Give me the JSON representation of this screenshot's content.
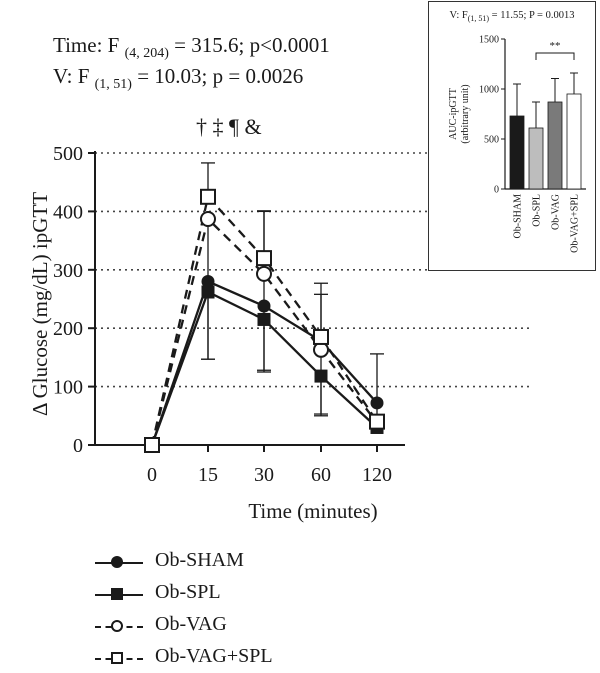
{
  "stats": {
    "time_prefix": "Time: F",
    "time_sub": "(4, 204)",
    "time_suffix": " = 315.6; p<0.0001",
    "v_prefix": "V: F",
    "v_sub": "(1, 51)",
    "v_suffix": " = 10.03; p = 0.0026"
  },
  "significance_marks": "† ‡ ¶ &",
  "chart_data": [
    {
      "type": "line",
      "title": "",
      "xlabel": "Time (minutes)",
      "ylabel": "Δ Glucose (mg/dL) ipGTT",
      "categories": [
        "0",
        "15",
        "30",
        "60",
        "120"
      ],
      "ylim": [
        0,
        500
      ],
      "yticks": [
        "0",
        "100",
        "200",
        "300",
        "400",
        "500"
      ],
      "grid": "dotted horizontal",
      "legend_placement": "bottom",
      "series": [
        {
          "name": "Ob-SHAM",
          "marker": "filled-circle",
          "line": "solid",
          "values": [
            0,
            280,
            238,
            178,
            72
          ],
          "err_up": [
            0,
            0,
            0,
            0,
            0
          ],
          "err_down": [
            0,
            0,
            0,
            0,
            0
          ]
        },
        {
          "name": "Ob-SPL",
          "marker": "filled-square",
          "line": "solid",
          "values": [
            0,
            262,
            215,
            118,
            30
          ],
          "err_up": [
            0,
            0,
            0,
            0,
            0
          ],
          "err_down": [
            0,
            115,
            90,
            65,
            0
          ]
        },
        {
          "name": "Ob-VAG",
          "marker": "open-circle",
          "line": "dashed",
          "values": [
            0,
            387,
            293,
            163,
            38
          ],
          "err_up": [
            0,
            0,
            108,
            95,
            118
          ],
          "err_down": [
            0,
            240,
            165,
            113,
            0
          ]
        },
        {
          "name": "Ob-VAG+SPL",
          "marker": "open-square",
          "line": "dashed",
          "values": [
            0,
            425,
            320,
            185,
            40
          ],
          "err_up": [
            0,
            58,
            80,
            92,
            0
          ],
          "err_down": [
            0,
            0,
            0,
            0,
            0
          ]
        }
      ]
    },
    {
      "type": "bar",
      "title_prefix": "V: F",
      "title_sub": "(1, 51)",
      "title_suffix": " = 11.55; P = 0.0013",
      "ylabel_line1": "AUC-ipGTT",
      "ylabel_line2": "(arbitrary unit)",
      "ylim": [
        0,
        1500
      ],
      "yticks": [
        "0",
        "500",
        "1000",
        "1500"
      ],
      "categories": [
        "Ob-SHAM",
        "Ob-SPL",
        "Ob-VAG",
        "Ob-VAG+SPL"
      ],
      "values": [
        730,
        610,
        870,
        950
      ],
      "errors": [
        320,
        260,
        235,
        210
      ],
      "colors": [
        "#1a1a1a",
        "#bdbdbd",
        "#7a7a7a",
        "#ffffff"
      ],
      "annotation": "**",
      "annotation_between": [
        "Ob-SPL",
        "Ob-VAG+SPL"
      ]
    }
  ]
}
